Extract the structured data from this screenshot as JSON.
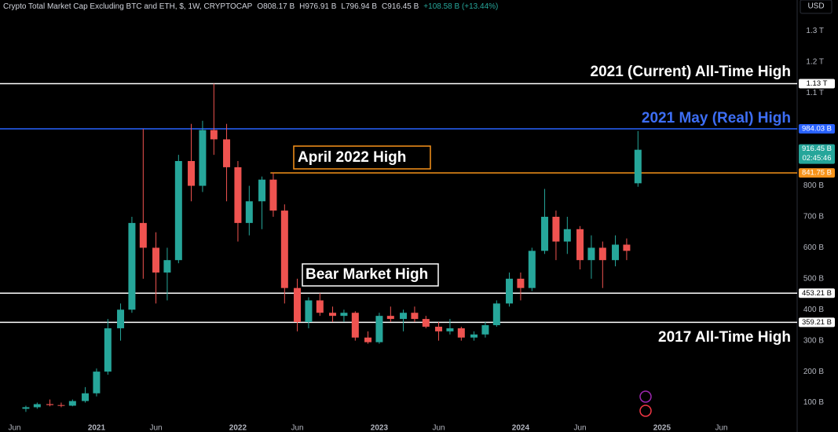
{
  "chart_data": {
    "type": "candlestick",
    "title": "Crypto Total Market Cap Excluding BTC and ETH, $, 1W, CRYPTOCAP",
    "header_values": [
      "O808.17 B",
      "H976.91 B",
      "L796.94 B",
      "C916.45 B",
      "+108.58 B (+13.44%)"
    ],
    "currency": "USD",
    "countdown": "02:45:46",
    "up_color": "#26a69a",
    "down_color": "#ef5350",
    "xlim": [
      2020.317,
      2025.956
    ],
    "xticks": [
      {
        "value": 2020.42,
        "label": "Jun"
      },
      {
        "value": 2021,
        "label": "2021"
      },
      {
        "value": 2021.42,
        "label": "Jun"
      },
      {
        "value": 2022,
        "label": "2022"
      },
      {
        "value": 2022.42,
        "label": "Jun"
      },
      {
        "value": 2023,
        "label": "2023"
      },
      {
        "value": 2023.42,
        "label": "Jun"
      },
      {
        "value": 2024,
        "label": "2024"
      },
      {
        "value": 2024.42,
        "label": "Jun"
      },
      {
        "value": 2025,
        "label": "2025"
      },
      {
        "value": 2025.42,
        "label": "Jun"
      }
    ],
    "ylim": [
      5,
      1400
    ],
    "yticks": [
      {
        "value": 100,
        "label": "100 B"
      },
      {
        "value": 200,
        "label": "200 B"
      },
      {
        "value": 300,
        "label": "300 B"
      },
      {
        "value": 400,
        "label": "400 B"
      },
      {
        "value": 500,
        "label": "500 B"
      },
      {
        "value": 600,
        "label": "600 B"
      },
      {
        "value": 700,
        "label": "700 B"
      },
      {
        "value": 800,
        "label": "800 B"
      },
      {
        "value": 1100,
        "label": "1.1 T"
      },
      {
        "value": 1200,
        "label": "1.2 T"
      },
      {
        "value": 1300,
        "label": "1.3 T"
      }
    ],
    "x": [
      2020.5,
      2020.58,
      2020.67,
      2020.75,
      2020.83,
      2020.92,
      2021.0,
      2021.08,
      2021.17,
      2021.25,
      2021.33,
      2021.42,
      2021.5,
      2021.58,
      2021.67,
      2021.75,
      2021.83,
      2021.92,
      2022.0,
      2022.08,
      2022.17,
      2022.25,
      2022.33,
      2022.42,
      2022.5,
      2022.58,
      2022.67,
      2022.75,
      2022.83,
      2022.92,
      2023.0,
      2023.08,
      2023.17,
      2023.25,
      2023.33,
      2023.42,
      2023.5,
      2023.58,
      2023.67,
      2023.75,
      2023.83,
      2023.92,
      2024.0,
      2024.08,
      2024.17,
      2024.25,
      2024.33,
      2024.42,
      2024.5,
      2024.58,
      2024.67,
      2024.75,
      2024.83
    ],
    "open": [
      80,
      85,
      95,
      92,
      90,
      105,
      130,
      200,
      340,
      400,
      680,
      600,
      520,
      560,
      880,
      800,
      980,
      950,
      860,
      680,
      750,
      820,
      720,
      470,
      360,
      430,
      390,
      380,
      390,
      310,
      295,
      380,
      370,
      390,
      370,
      345,
      330,
      340,
      310,
      320,
      350,
      420,
      500,
      470,
      590,
      700,
      620,
      660,
      560,
      600,
      560,
      610,
      808.17
    ],
    "high": [
      90,
      100,
      110,
      100,
      110,
      150,
      210,
      370,
      420,
      700,
      984.03,
      650,
      600,
      900,
      1000,
      1010,
      1130,
      1000,
      880,
      800,
      830,
      841.75,
      740,
      500,
      440,
      453.21,
      410,
      400,
      395,
      330,
      390,
      410,
      400,
      410,
      380,
      360,
      370,
      345,
      330,
      360,
      430,
      520,
      520,
      600,
      790,
      720,
      700,
      670,
      640,
      620,
      640,
      630,
      976.91
    ],
    "low": [
      70,
      80,
      88,
      85,
      88,
      100,
      120,
      190,
      300,
      390,
      500,
      420,
      430,
      550,
      750,
      780,
      900,
      750,
      620,
      640,
      660,
      700,
      420,
      330,
      340,
      380,
      360,
      360,
      300,
      290,
      290,
      360,
      330,
      360,
      340,
      300,
      320,
      300,
      300,
      310,
      345,
      410,
      430,
      460,
      580,
      560,
      580,
      530,
      500,
      470,
      540,
      560,
      796.94
    ],
    "close": [
      85,
      95,
      92,
      90,
      105,
      130,
      200,
      340,
      400,
      680,
      600,
      520,
      560,
      880,
      800,
      980,
      950,
      860,
      680,
      750,
      820,
      720,
      470,
      360,
      430,
      390,
      380,
      390,
      310,
      295,
      380,
      370,
      390,
      370,
      345,
      330,
      340,
      310,
      320,
      350,
      420,
      500,
      470,
      590,
      700,
      620,
      660,
      560,
      600,
      560,
      610,
      590,
      916.45
    ],
    "levels": [
      {
        "value": 1130,
        "label": "1.13 T",
        "color": "#ffffff",
        "text": "2021 (Current) All-Time High"
      },
      {
        "value": 984.03,
        "label": "984.03 B",
        "color": "#2962ff",
        "text": "2021 May (Real) High"
      },
      {
        "value": 841.75,
        "label": "841.75 B",
        "color": "#f7931a",
        "text": "April 2022 High",
        "from": 2022.23
      },
      {
        "value": 453.21,
        "label": "453.21 B",
        "color": "#ffffff",
        "text": "Bear Market High"
      },
      {
        "value": 359.21,
        "label": "359.21 B",
        "color": "#ffffff",
        "text": "2017 All-Time High"
      }
    ],
    "last_price": {
      "value": 916.45,
      "label": "916.45 B"
    }
  }
}
